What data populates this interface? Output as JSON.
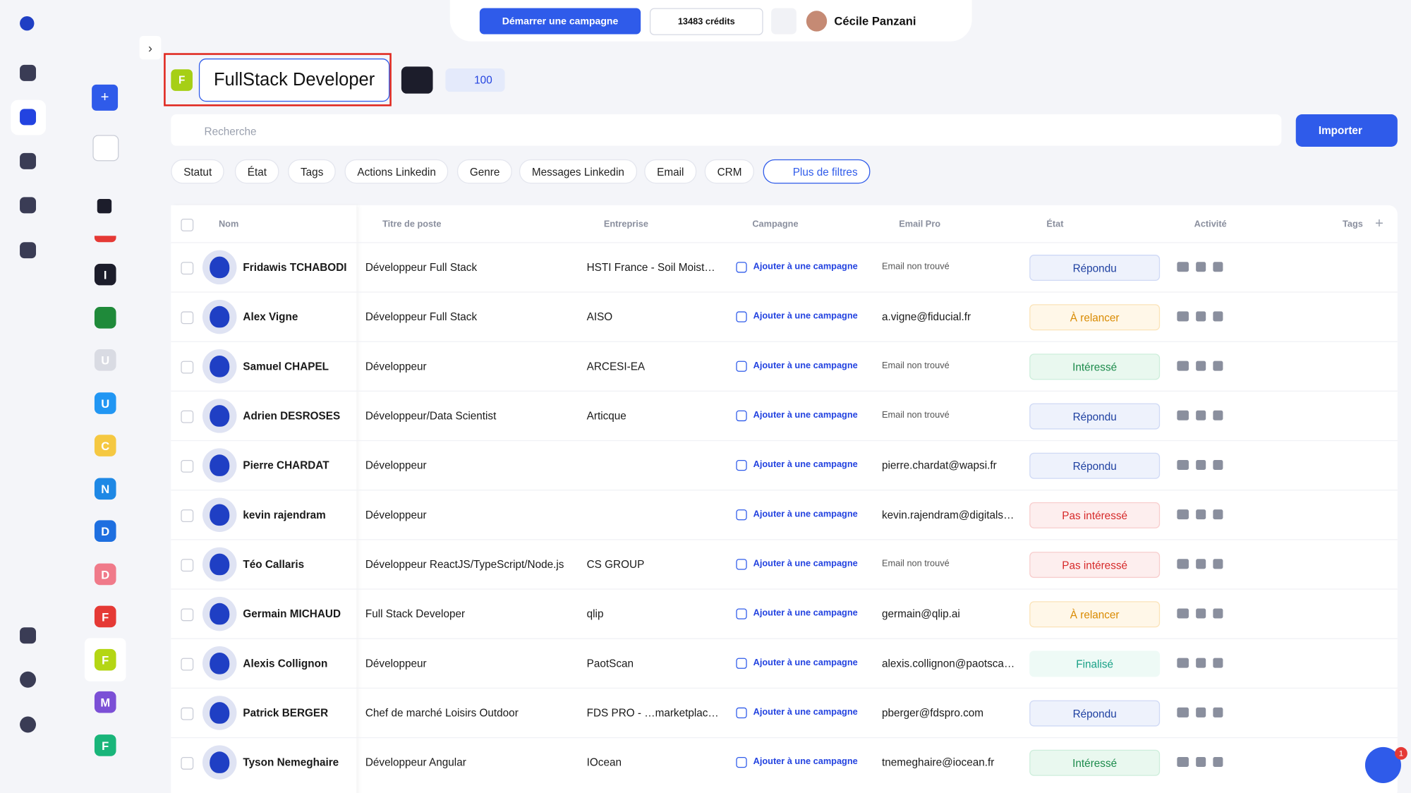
{
  "header": {
    "campaign_button": "Démarrer une campagne",
    "credits": "13483 crédits",
    "user": "Cécile Panzani",
    "notifications": "1"
  },
  "list": {
    "badge": "F",
    "title": "FullStack Developer",
    "count": "100"
  },
  "search": {
    "placeholder": "Recherche",
    "import_button": "Importer"
  },
  "filters": [
    "Statut",
    "État",
    "Tags",
    "Actions Linkedin",
    "Genre",
    "Messages Linkedin",
    "Email",
    "CRM"
  ],
  "more_filters": "Plus de filtres",
  "sidebar_lists": [
    {
      "letter": "I",
      "color": "#1c1d2b"
    },
    {
      "letter": "U",
      "color": "#d9dbe3"
    },
    {
      "letter": "U",
      "color": "#2196f3"
    },
    {
      "letter": "C",
      "color": "#f5c842"
    },
    {
      "letter": "N",
      "color": "#1e88e5"
    },
    {
      "letter": "D",
      "color": "#1e6fe0"
    },
    {
      "letter": "D",
      "color": "#f07a8a"
    },
    {
      "letter": "F",
      "color": "#e53935"
    },
    {
      "letter": "F",
      "color": "#b4d614"
    },
    {
      "letter": "M",
      "color": "#7b4fd6"
    },
    {
      "letter": "F",
      "color": "#19b57a"
    }
  ],
  "table": {
    "columns": [
      "Nom",
      "Titre de poste",
      "Entreprise",
      "Campagne",
      "Email Pro",
      "État",
      "Activité",
      "Tags"
    ],
    "rows": [
      {
        "name": "Fridawis TCHABODI",
        "title": "Développeur Full Stack",
        "company": "HSTI France - Soil Moist…",
        "campaign": "Ajouter à une campagne",
        "email": "Email non trouvé",
        "state": "Répondu"
      },
      {
        "name": "Alex Vigne",
        "title": "Développeur Full Stack",
        "company": "AISO",
        "campaign": "Ajouter à une campagne",
        "email": "a.vigne@fiducial.fr",
        "state": "À relancer"
      },
      {
        "name": "Samuel CHAPEL",
        "title": "Développeur",
        "company": "ARCESI-EA",
        "campaign": "Ajouter à une campagne",
        "email": "Email non trouvé",
        "state": "Intéressé"
      },
      {
        "name": "Adrien DESROSES",
        "title": "Développeur/Data Scientist",
        "company": "Articque",
        "campaign": "Ajouter à une campagne",
        "email": "Email non trouvé",
        "state": "Répondu"
      },
      {
        "name": "Pierre CHARDAT",
        "title": "Développeur",
        "company": null,
        "campaign": "Ajouter à une campagne",
        "email": "pierre.chardat@wapsi.fr",
        "state": "Répondu"
      },
      {
        "name": "kevin rajendram",
        "title": "Développeur",
        "company": null,
        "campaign": "Ajouter à une campagne",
        "email": "kevin.rajendram@digitals…",
        "state": "Pas intéressé"
      },
      {
        "name": "Téo Callaris",
        "title": "Développeur ReactJS/TypeScript/Node.js",
        "company": "CS GROUP",
        "campaign": "Ajouter à une campagne",
        "email": "Email non trouvé",
        "state": "Pas intéressé"
      },
      {
        "name": "Germain MICHAUD",
        "title": "Full Stack Developer",
        "company": "qlip",
        "campaign": "Ajouter à une campagne",
        "email": "germain@qlip.ai",
        "state": "À relancer"
      },
      {
        "name": "Alexis Collignon",
        "title": "Développeur",
        "company": "PaotScan",
        "campaign": "Ajouter à une campagne",
        "email": "alexis.collignon@paotsca…",
        "state": "Finalisé"
      },
      {
        "name": "Patrick BERGER",
        "title": "Chef de marché Loisirs Outdoor",
        "company": "FDS PRO - …marketplac…",
        "campaign": "Ajouter à une campagne",
        "email": "pberger@fdspro.com",
        "state": "Répondu"
      },
      {
        "name": "Tyson Nemeghaire",
        "title": "Développeur Angular",
        "company": "IOcean",
        "campaign": "Ajouter à une campagne",
        "email": "tnemeghaire@iocean.fr",
        "state": "Intéressé"
      }
    ]
  }
}
